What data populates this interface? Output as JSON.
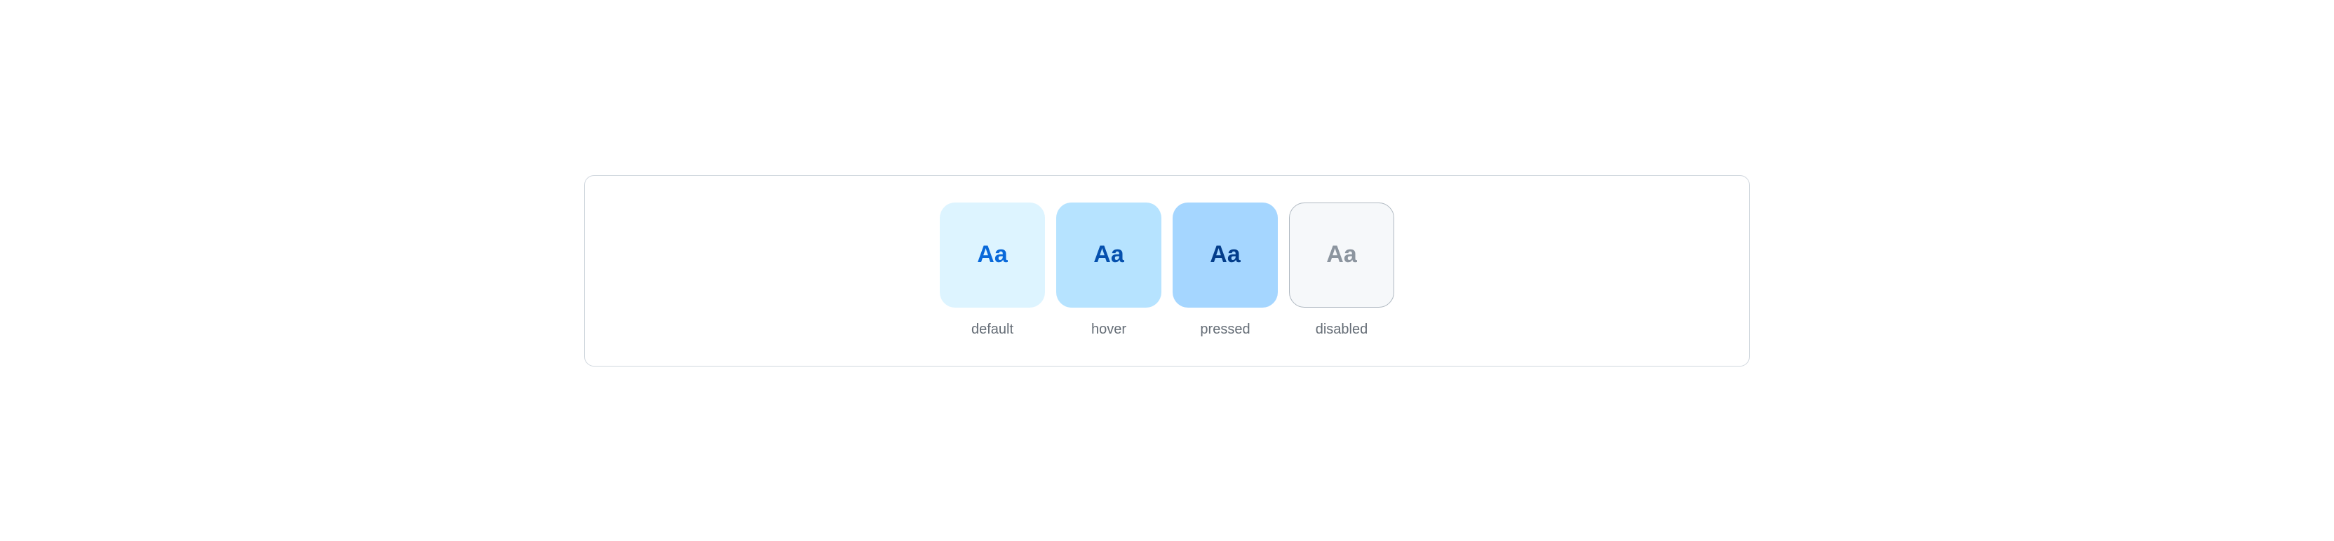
{
  "container": {
    "border_color": "#d0d7de",
    "border_radius": 14,
    "background": "#ffffff"
  },
  "swatches": [
    {
      "state": "default",
      "label": "default",
      "text": "Aa",
      "background_color": "#ddf4ff",
      "text_color": "#0969da",
      "border_color": "transparent",
      "interactable": true
    },
    {
      "state": "hover",
      "label": "hover",
      "text": "Aa",
      "background_color": "#b6e3ff",
      "text_color": "#0550ae",
      "border_color": "transparent",
      "interactable": true
    },
    {
      "state": "pressed",
      "label": "pressed",
      "text": "Aa",
      "background_color": "#a5d6ff",
      "text_color": "#033d8b",
      "border_color": "transparent",
      "interactable": true
    },
    {
      "state": "disabled",
      "label": "disabled",
      "text": "Aa",
      "background_color": "#f6f8fa",
      "text_color": "#8c959f",
      "border_color": "#afb8c1",
      "interactable": false
    }
  ],
  "label_color": "#656d76",
  "swatch_size": 150,
  "swatch_border_radius": 22,
  "swatch_text_fontsize": 34,
  "swatch_text_fontweight": 600,
  "label_fontsize": 20,
  "gap": 16
}
